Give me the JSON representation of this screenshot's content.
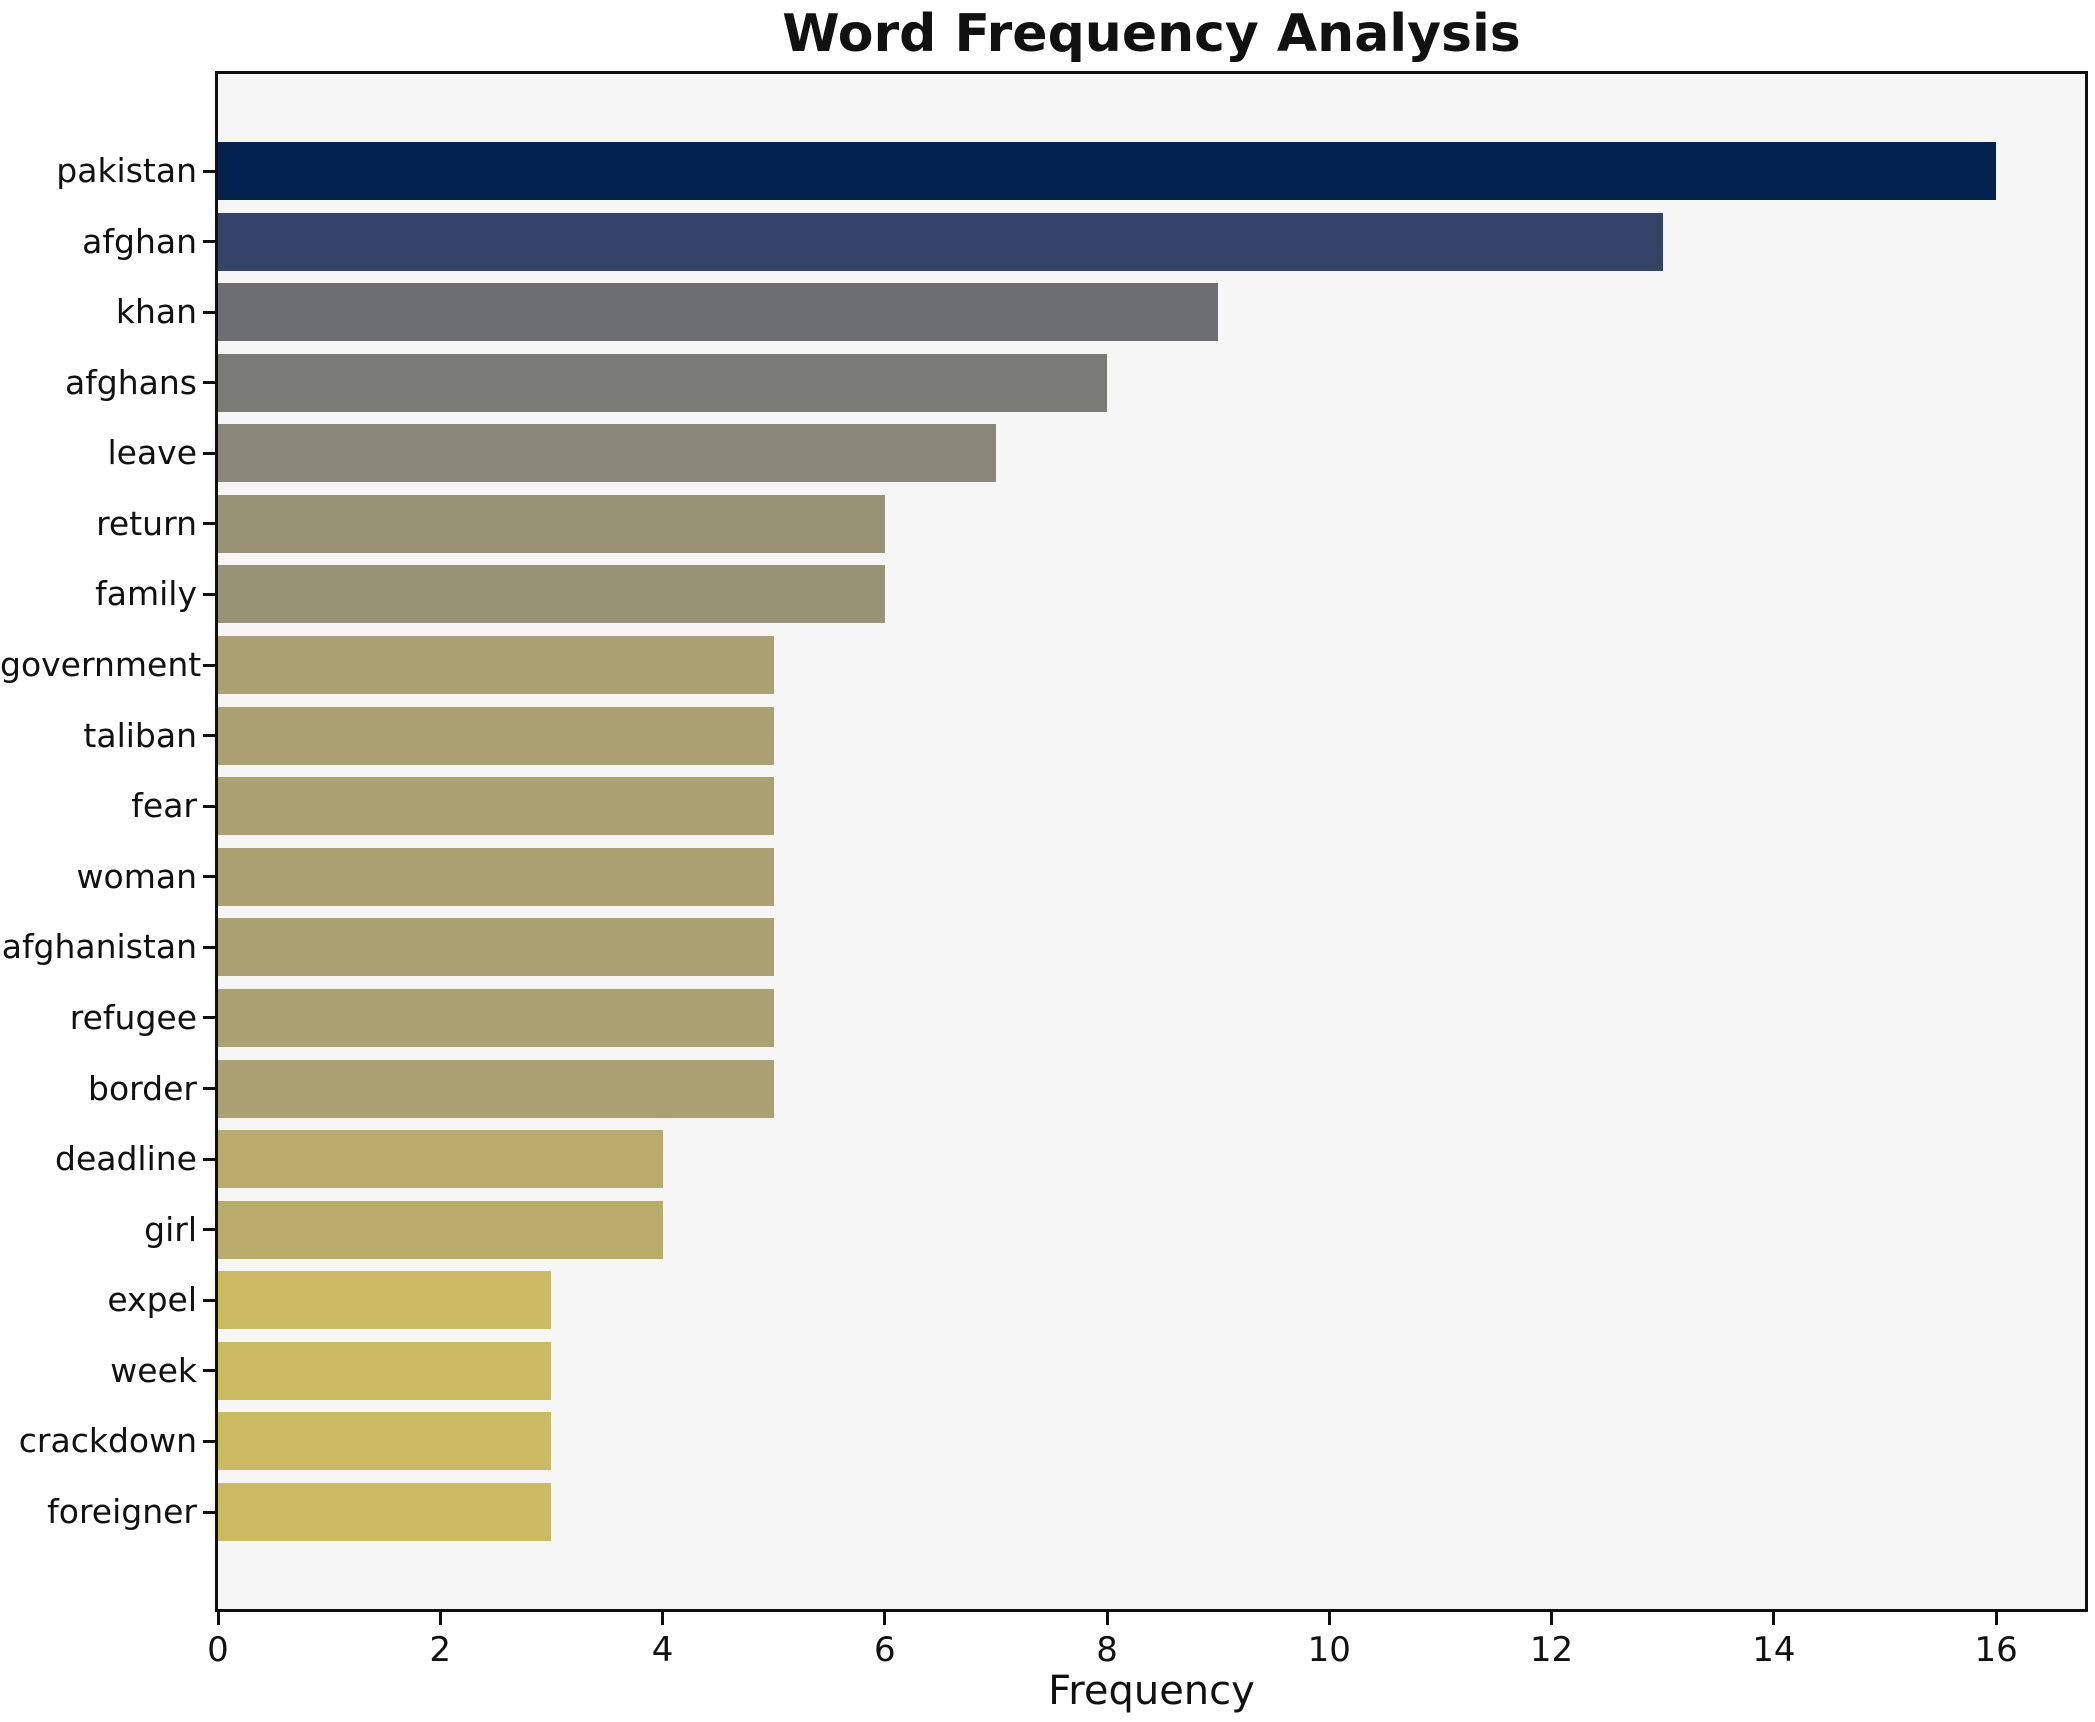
{
  "chart_data": {
    "type": "bar",
    "orientation": "horizontal",
    "title": "Word Frequency Analysis",
    "xlabel": "Frequency",
    "ylabel": "",
    "xlim": [
      0,
      16.8
    ],
    "x_ticks": [
      0,
      2,
      4,
      6,
      8,
      10,
      12,
      14,
      16
    ],
    "grid": false,
    "legend_position": "none",
    "categories": [
      "pakistan",
      "afghan",
      "khan",
      "afghans",
      "leave",
      "return",
      "family",
      "government",
      "taliban",
      "fear",
      "woman",
      "afghanistan",
      "refugee",
      "border",
      "deadline",
      "girl",
      "expel",
      "week",
      "crackdown",
      "foreigner"
    ],
    "values": [
      16,
      13,
      9,
      8,
      7,
      6,
      6,
      5,
      5,
      5,
      5,
      5,
      5,
      5,
      4,
      4,
      3,
      3,
      3,
      3
    ],
    "bar_colors": [
      "#03234e",
      "#33436a",
      "#6c6e72",
      "#7b7b76",
      "#8a8878",
      "#999376",
      "#999376",
      "#aba071",
      "#aba071",
      "#aba071",
      "#aba071",
      "#aba071",
      "#aba071",
      "#aba071",
      "#b9ab69",
      "#b9ab69",
      "#ccba62",
      "#ccba62",
      "#ccba62",
      "#ccba62"
    ],
    "colors": {
      "figure_background": "#ffffff",
      "plot_background": "#f6f6f7",
      "spine": "#0f0f0f",
      "text": "#111111"
    }
  }
}
